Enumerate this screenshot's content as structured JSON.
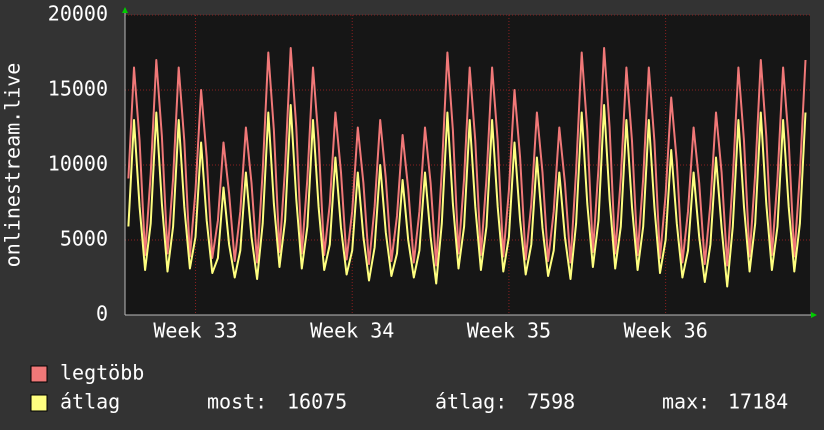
{
  "chart_data": {
    "type": "line",
    "ylabel": "onlinestream.live",
    "x": [
      0.5,
      0.75,
      1,
      1.25,
      1.5,
      1.75,
      2,
      2.25,
      2.5,
      2.75,
      3,
      3.25,
      3.5,
      3.75,
      4,
      4.25,
      4.5,
      4.75,
      5,
      5.25,
      5.5,
      5.75,
      6,
      6.25,
      6.5,
      6.75,
      7,
      7.25,
      7.5,
      7.75,
      8,
      8.25,
      8.5,
      8.75,
      9,
      9.25,
      9.5,
      9.75,
      10,
      10.25,
      10.5,
      10.75,
      11,
      11.25,
      11.5,
      11.75,
      12,
      12.25,
      12.5,
      12.75,
      13,
      13.25,
      13.5,
      13.75,
      14,
      14.25,
      14.5,
      14.75,
      15,
      15.25,
      15.5,
      15.75,
      16,
      16.25,
      16.5,
      16.75,
      17,
      17.25,
      17.5,
      17.75,
      18,
      18.25,
      18.5,
      18.75,
      19,
      19.25,
      19.5,
      19.75,
      20,
      20.25,
      20.5,
      20.75,
      21,
      21.25,
      21.5,
      21.75,
      22,
      22.25,
      22.5,
      22.75,
      23,
      23.25,
      23.5,
      23.75,
      24,
      24.25,
      24.5,
      24.75,
      25,
      25.25,
      25.5,
      25.75,
      26,
      26.25,
      26.5,
      26.75,
      27,
      27.25,
      27.5,
      27.75,
      28,
      28.25,
      28.5,
      28.75,
      29,
      29.25,
      29.5,
      29.75,
      30,
      30.25,
      30.5,
      30.75
    ],
    "series": [
      {
        "name": "legtöbb",
        "color": "#f07878",
        "values": [
          9100,
          16500,
          11600,
          4000,
          9400,
          17000,
          11900,
          4100,
          9100,
          16500,
          11600,
          3900,
          8300,
          15000,
          10500,
          3800,
          6300,
          11500,
          8100,
          3600,
          6900,
          12500,
          8800,
          3500,
          9600,
          17500,
          12300,
          4200,
          9800,
          17800,
          12500,
          4100,
          9100,
          16500,
          11600,
          4000,
          7400,
          13500,
          9500,
          3700,
          6900,
          12500,
          8800,
          3400,
          7200,
          13000,
          9100,
          3600,
          6600,
          12000,
          8400,
          3500,
          6900,
          12500,
          8800,
          3300,
          9600,
          17500,
          12300,
          4100,
          9100,
          16500,
          11600,
          4000,
          9100,
          16500,
          11600,
          3900,
          8300,
          15000,
          10500,
          3700,
          7400,
          13500,
          9500,
          3600,
          6900,
          12500,
          8800,
          3500,
          9600,
          17500,
          12300,
          4200,
          9800,
          17800,
          12500,
          4100,
          9100,
          16500,
          11600,
          4000,
          9100,
          16500,
          11600,
          3800,
          8000,
          14500,
          10200,
          3500,
          6900,
          12500,
          8800,
          3400,
          7400,
          13500,
          9500,
          3300,
          9100,
          16500,
          11600,
          3900,
          9400,
          17000,
          11900,
          4000,
          9100,
          16500,
          11600,
          3900,
          9400,
          17000
        ]
      },
      {
        "name": "átlag",
        "color": "#ffff80",
        "values": [
          5900,
          13000,
          7200,
          3000,
          6100,
          13500,
          7400,
          2900,
          5900,
          13000,
          7200,
          3100,
          5200,
          11500,
          6300,
          2800,
          3800,
          8500,
          4700,
          2500,
          4300,
          9500,
          5200,
          2400,
          6100,
          13500,
          7400,
          3200,
          6300,
          14000,
          7700,
          3100,
          5900,
          13000,
          7200,
          3000,
          4700,
          10500,
          5800,
          2700,
          4300,
          9500,
          5200,
          2300,
          4500,
          10000,
          5500,
          2600,
          4100,
          9000,
          5000,
          2500,
          4300,
          9500,
          5200,
          2100,
          6100,
          13500,
          7400,
          3100,
          5900,
          13000,
          7200,
          3000,
          5900,
          13000,
          7200,
          2900,
          5200,
          11500,
          6300,
          2700,
          4700,
          10500,
          5800,
          2600,
          4300,
          9500,
          5200,
          2400,
          6100,
          13500,
          7400,
          3200,
          6300,
          14000,
          7700,
          3100,
          5900,
          13000,
          7200,
          3000,
          5900,
          13000,
          7200,
          2800,
          5000,
          11000,
          6100,
          2500,
          4300,
          9500,
          5200,
          2200,
          4700,
          10500,
          5800,
          1900,
          5900,
          13000,
          7200,
          2900,
          6100,
          13500,
          7400,
          3000,
          5900,
          13000,
          7200,
          2900,
          6100,
          13500
        ]
      }
    ],
    "xlim": [
      0.35,
      30.95
    ],
    "xticks": [
      {
        "value": 3.5,
        "label": "Week 33"
      },
      {
        "value": 10.5,
        "label": "Week 34"
      },
      {
        "value": 17.5,
        "label": "Week 35"
      },
      {
        "value": 24.5,
        "label": "Week 36"
      }
    ],
    "ylim": [
      0,
      20000
    ],
    "yticks": [
      0,
      5000,
      10000,
      15000,
      20000
    ],
    "grid": true,
    "stats": [
      {
        "label": "most:",
        "value": 16075
      },
      {
        "label": "átlag:",
        "value": 7598
      },
      {
        "label": "max:",
        "value": 17184
      }
    ]
  }
}
